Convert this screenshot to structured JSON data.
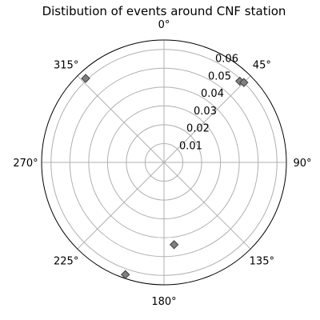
{
  "chart_data": {
    "type": "scatter",
    "projection": "polar",
    "title": "Distibution of events around CNF station",
    "theta_zero_location": "top",
    "theta_direction": "clockwise",
    "theta_tick_labels": [
      "0°",
      "45°",
      "90°",
      "135°",
      "180°",
      "225°",
      "270°",
      "315°"
    ],
    "theta_ticks_deg": [
      0,
      45,
      90,
      135,
      180,
      225,
      270,
      315
    ],
    "r_ticks": [
      0.01,
      0.02,
      0.03,
      0.04,
      0.05,
      0.06
    ],
    "r_tick_labels": [
      "0.01",
      "0.02",
      "0.03",
      "0.04",
      "0.05",
      "0.06"
    ],
    "rlim": [
      0,
      0.065
    ],
    "grid": true,
    "marker": "diamond",
    "marker_color": "#808080",
    "points": [
      {
        "theta_deg": 43,
        "r": 0.059
      },
      {
        "theta_deg": 45,
        "r": 0.06
      },
      {
        "theta_deg": 317,
        "r": 0.061
      },
      {
        "theta_deg": 173,
        "r": 0.044
      },
      {
        "theta_deg": 199,
        "r": 0.063
      }
    ]
  }
}
